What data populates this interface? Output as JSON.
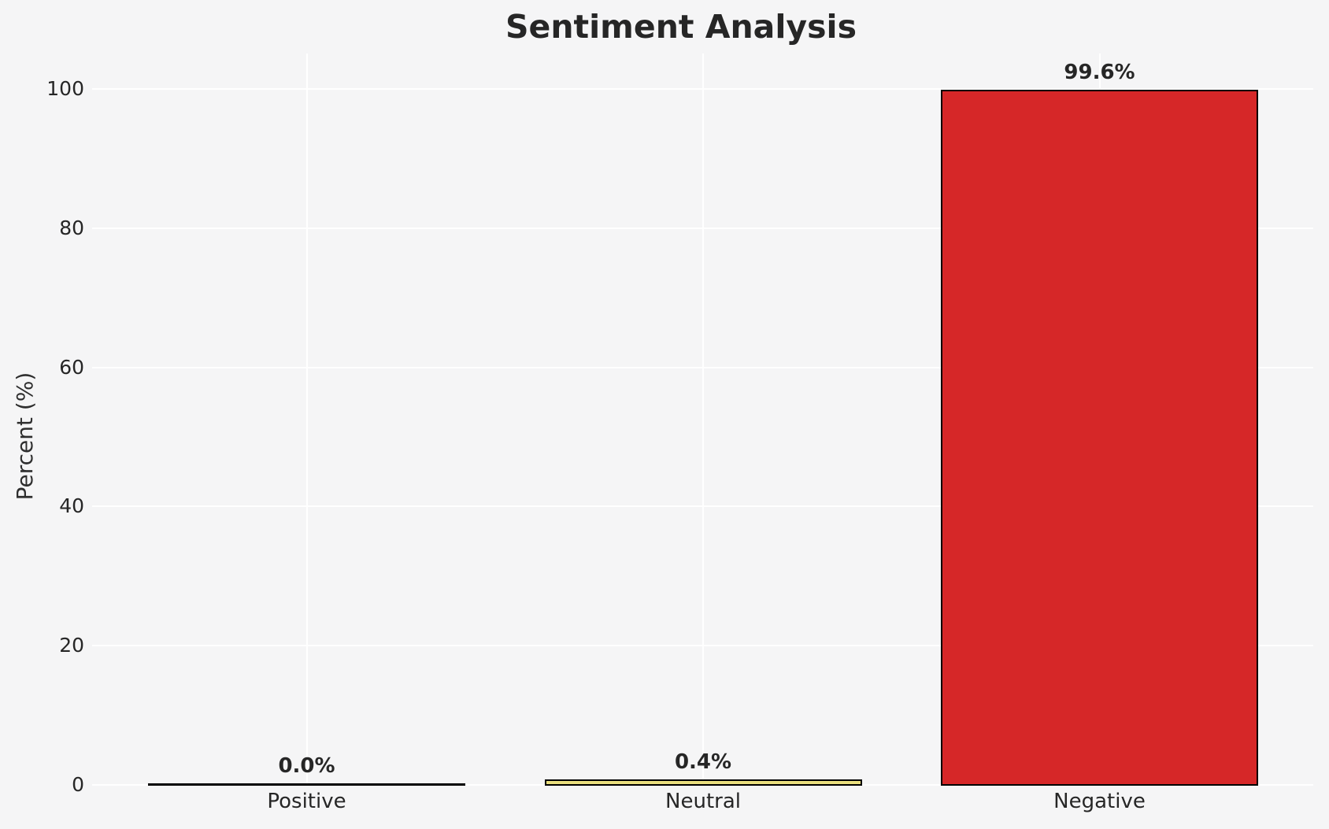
{
  "title": "Sentiment Analysis",
  "chart_data": {
    "type": "bar",
    "title": "Sentiment Analysis",
    "xlabel": "",
    "ylabel": "Percent (%)",
    "categories": [
      "Positive",
      "Neutral",
      "Negative"
    ],
    "values": [
      0.0,
      0.4,
      99.6
    ],
    "value_labels": [
      "0.0%",
      "0.4%",
      "99.6%"
    ],
    "bar_fill_colors": [
      "none",
      "#eadf7e",
      "#d62728"
    ],
    "bar_edge_color": "#000000",
    "yticks": [
      0,
      20,
      40,
      60,
      80,
      100
    ],
    "ylim": [
      0,
      105
    ],
    "grid": "on",
    "gridline_color": "#ffffff",
    "background_color": "#f5f5f6",
    "text_color": "#262626",
    "legend": "none"
  }
}
